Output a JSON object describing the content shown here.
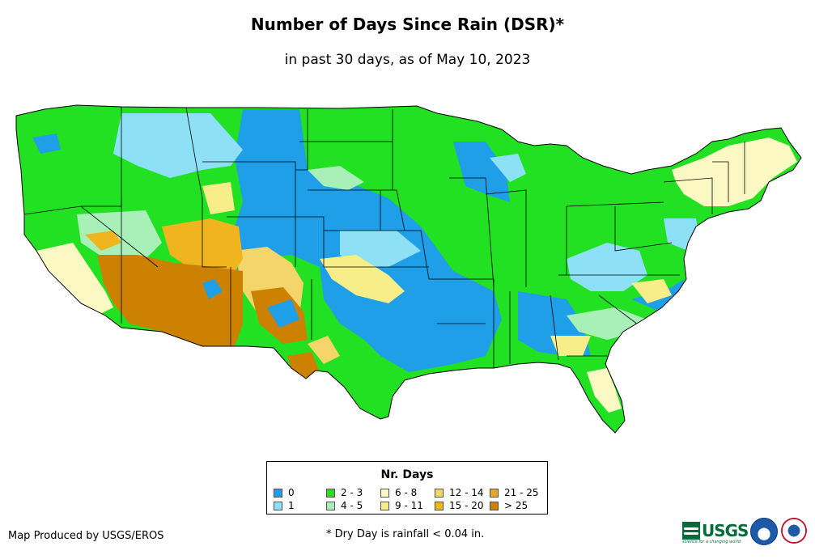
{
  "header": {
    "title": "Number of Days Since Rain (DSR)*",
    "subtitle": "in past 30 days, as of May 10, 2023"
  },
  "legend": {
    "title": "Nr. Days",
    "items": [
      {
        "label": "0",
        "color": "#1e9fe8"
      },
      {
        "label": "1",
        "color": "#8ee0f7"
      },
      {
        "label": "2 - 3",
        "color": "#22e022"
      },
      {
        "label": "4 - 5",
        "color": "#a8f0b8"
      },
      {
        "label": "6 - 8",
        "color": "#fbf8c4"
      },
      {
        "label": "9 - 11",
        "color": "#f7ee8a"
      },
      {
        "label": "12 - 14",
        "color": "#f3d56a"
      },
      {
        "label": "15 - 20",
        "color": "#f0b51e"
      },
      {
        "label": "21 - 25",
        "color": "#e8a52a"
      },
      {
        "label": "> 25",
        "color": "#cc8200"
      }
    ]
  },
  "footer": {
    "credit": "Map Produced by USGS/EROS",
    "note": "* Dry Day is rainfall < 0.04 in."
  },
  "logos": {
    "usgs_text": "USGS",
    "usgs_tagline": "science for a changing world",
    "agency_icons": [
      "noaa-logo-icon",
      "nws-logo-icon"
    ]
  },
  "map": {
    "region": "Contiguous United States",
    "boundary_color": "#000000"
  }
}
